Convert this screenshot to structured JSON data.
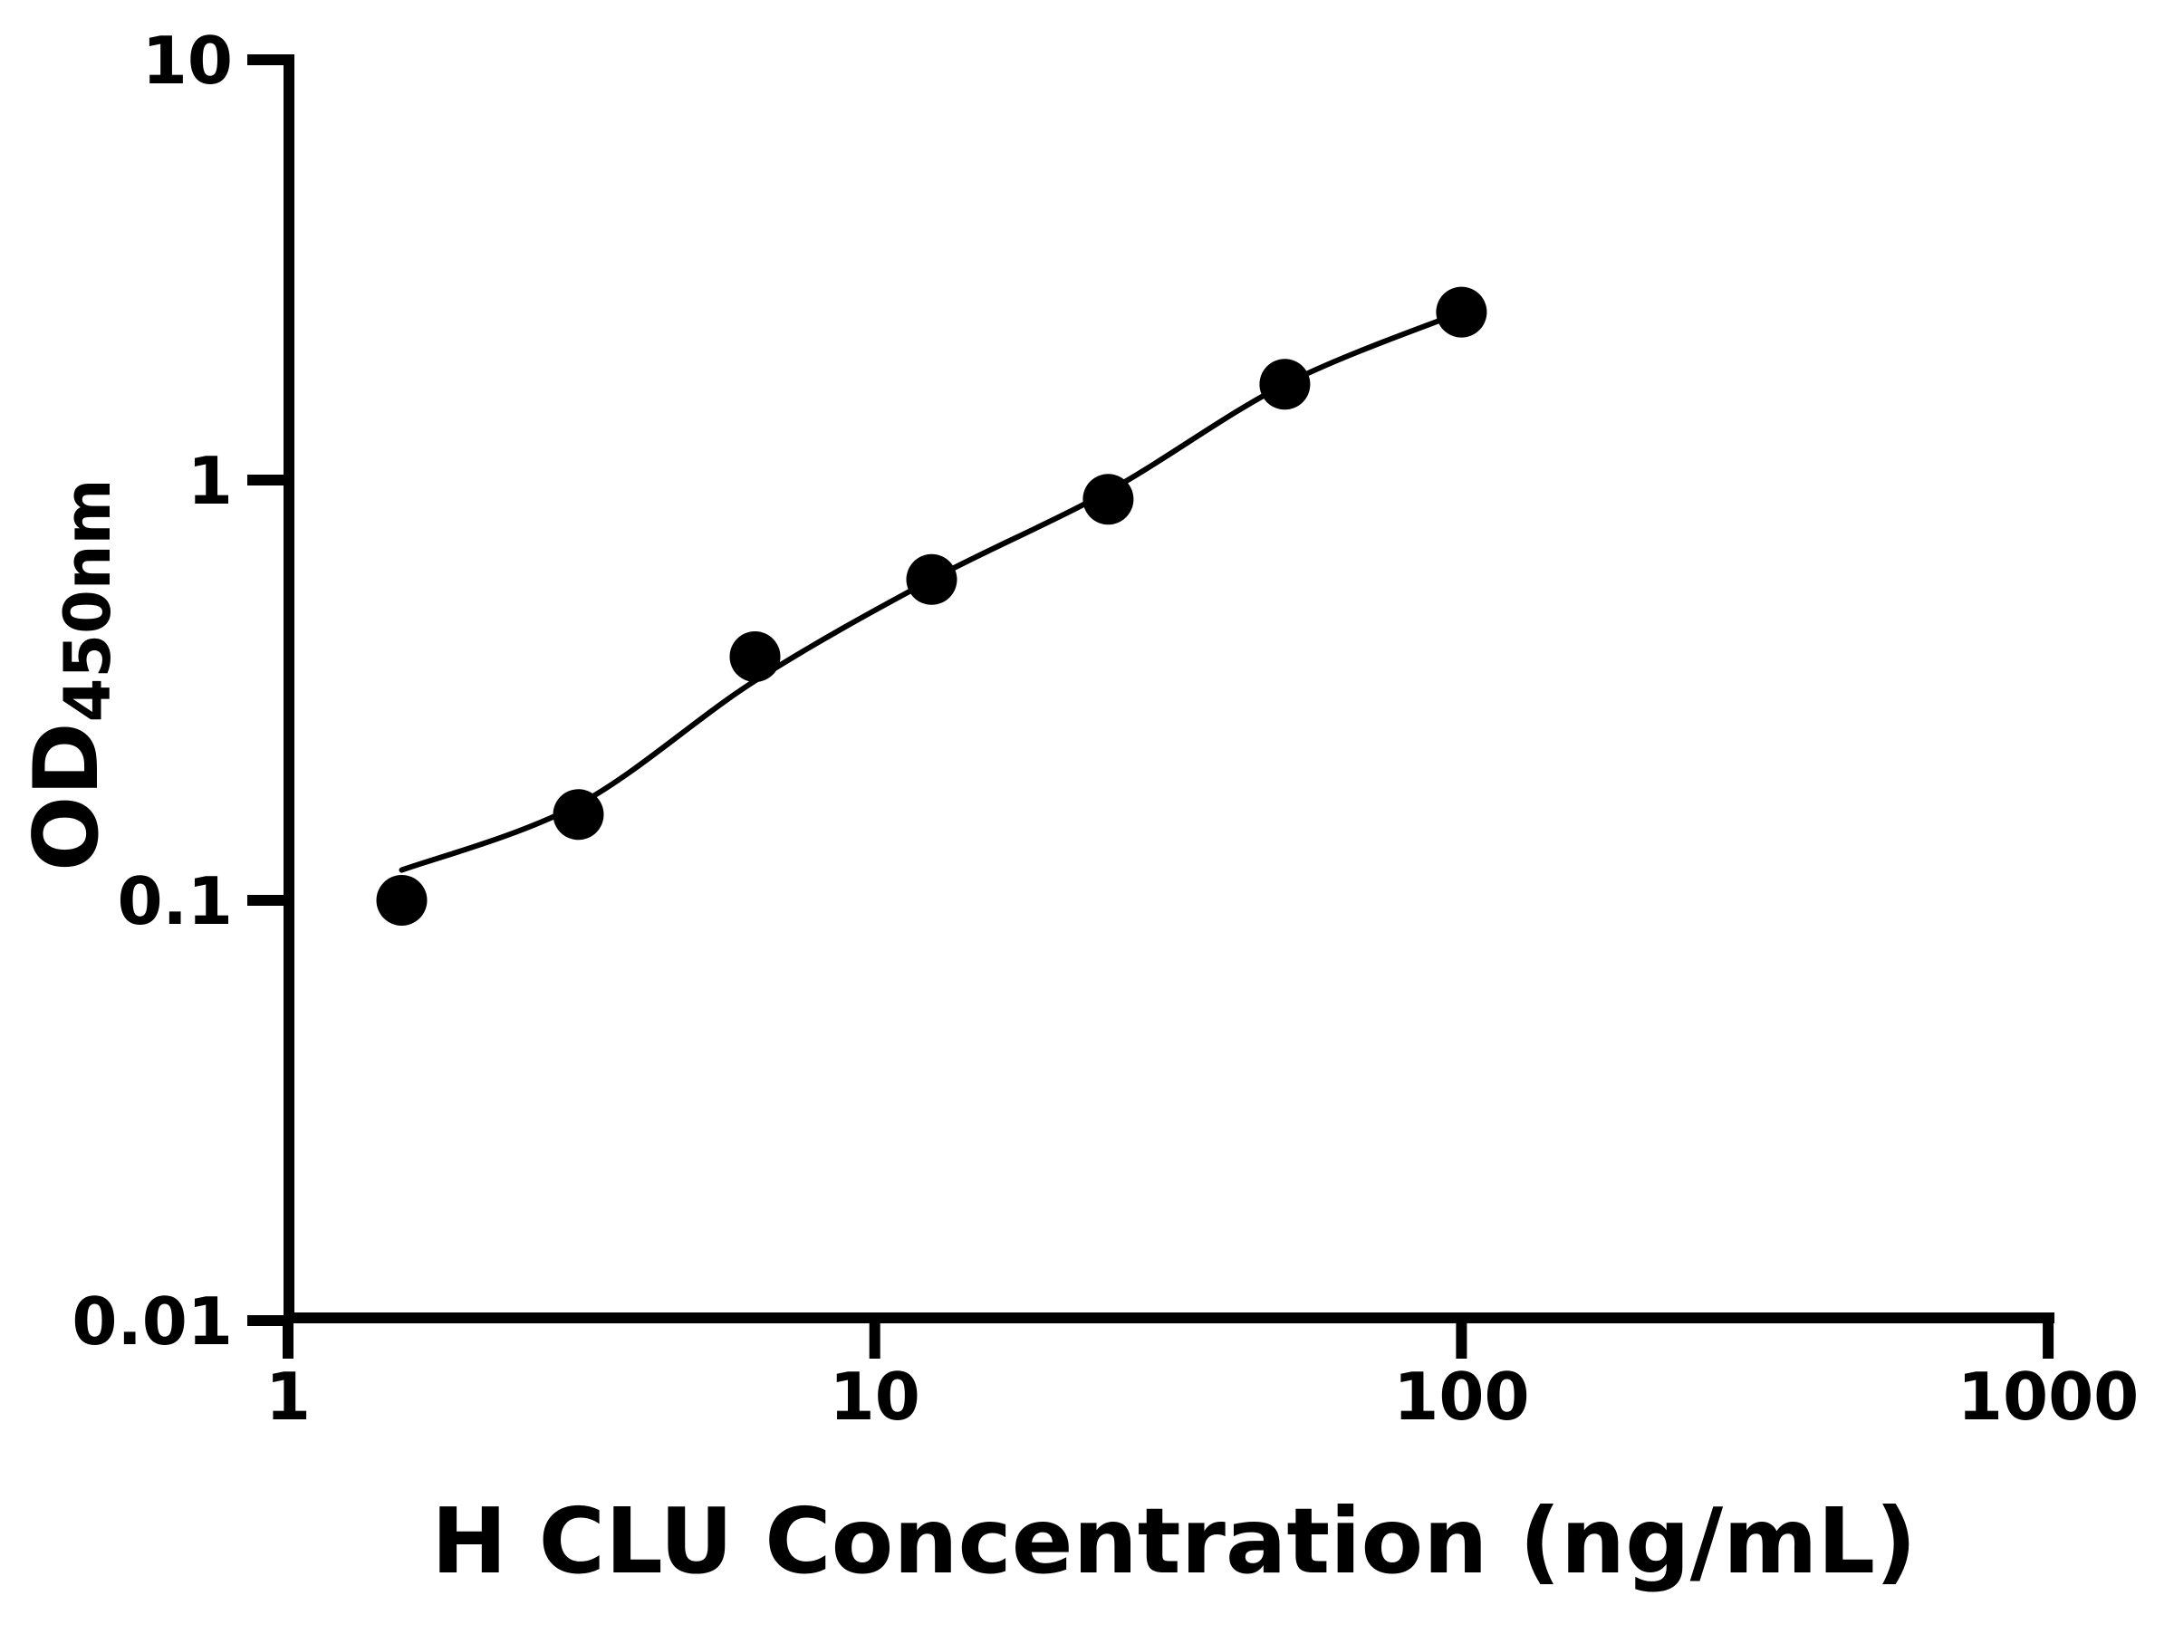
{
  "figure": {
    "background_color": "#ffffff",
    "ink_color": "#000000"
  },
  "chart_data": {
    "type": "scatter",
    "description": "ELISA standard curve with fitted line on log-log axes",
    "title": "",
    "xlabel": "H CLU Concentration (ng/mL)",
    "ylabel_main": "OD",
    "ylabel_sub": "450nm",
    "x_scale": "log",
    "y_scale": "log",
    "xlim": [
      1,
      1000
    ],
    "ylim": [
      0.01,
      10
    ],
    "grid": false,
    "legend": "none",
    "x_ticks": [
      {
        "value": 1,
        "label": "1"
      },
      {
        "value": 10,
        "label": "10"
      },
      {
        "value": 100,
        "label": "100"
      },
      {
        "value": 1000,
        "label": "1000"
      }
    ],
    "y_ticks": [
      {
        "value": 10,
        "label": "10"
      },
      {
        "value": 1,
        "label": "1"
      },
      {
        "value": 0.1,
        "label": "0.1"
      },
      {
        "value": 0.01,
        "label": "0.01"
      }
    ],
    "series": [
      {
        "name": "standards",
        "marker": "circle",
        "color": "#000000",
        "points": [
          {
            "x": 1.5625,
            "y": 0.1
          },
          {
            "x": 3.125,
            "y": 0.16
          },
          {
            "x": 6.25,
            "y": 0.38
          },
          {
            "x": 12.5,
            "y": 0.58
          },
          {
            "x": 25,
            "y": 0.9
          },
          {
            "x": 50,
            "y": 1.69
          },
          {
            "x": 100,
            "y": 2.51
          }
        ]
      }
    ],
    "fit_curve": {
      "name": "fitted-standard-curve",
      "color": "#000000",
      "samples": [
        {
          "x": 1.5625,
          "y": 0.118
        },
        {
          "x": 3.125,
          "y": 0.169
        },
        {
          "x": 6.25,
          "y": 0.333
        },
        {
          "x": 12.5,
          "y": 0.58
        },
        {
          "x": 25,
          "y": 0.94
        },
        {
          "x": 50,
          "y": 1.69
        },
        {
          "x": 100,
          "y": 2.51
        }
      ]
    }
  }
}
